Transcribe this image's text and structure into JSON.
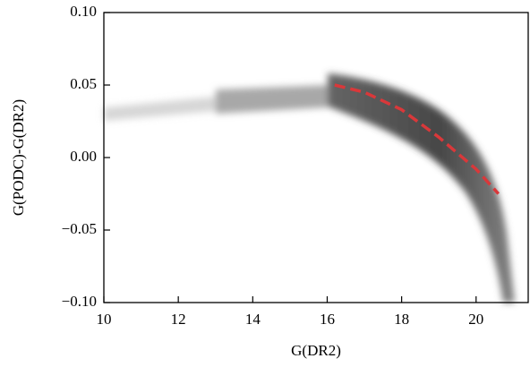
{
  "chart_data": {
    "type": "line",
    "xlabel": "G(DR2)",
    "ylabel": "G(PODC)-G(DR2)",
    "xlim": [
      10,
      21.4
    ],
    "ylim": [
      -0.1,
      0.1
    ],
    "xticks": [
      10,
      12,
      14,
      16,
      18,
      20
    ],
    "yticks": [
      {
        "value": -0.1,
        "label": "−0.10"
      },
      {
        "value": -0.05,
        "label": "−0.05"
      },
      {
        "value": 0,
        "label": "0.00"
      },
      {
        "value": 0.05,
        "label": "0.05"
      },
      {
        "value": 0.1,
        "label": "0.10"
      }
    ],
    "series": [
      {
        "color": "#d9383a",
        "dashed": true,
        "x": [
          16.2,
          17,
          18,
          19,
          19.5,
          20,
          20.6
        ],
        "values": [
          0.05,
          0.045,
          0.033,
          0.014,
          0.003,
          -0.008,
          -0.025
        ]
      }
    ]
  }
}
